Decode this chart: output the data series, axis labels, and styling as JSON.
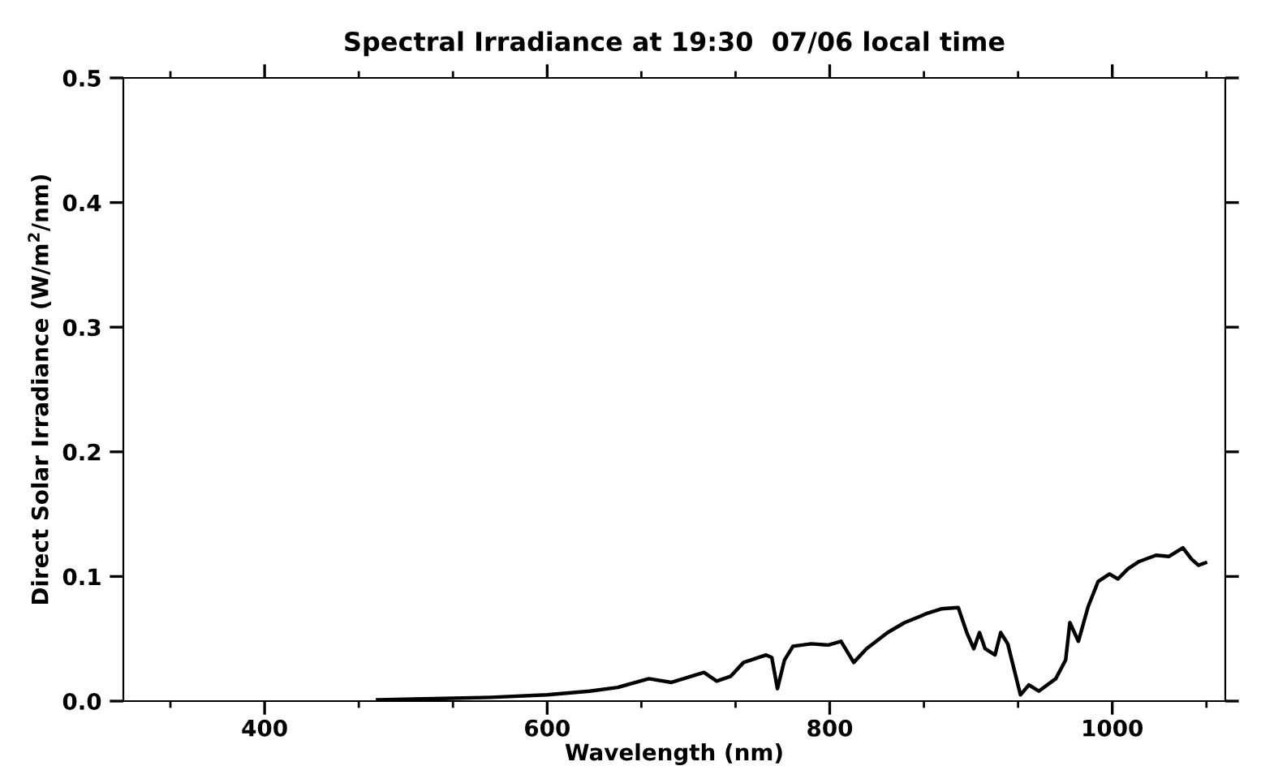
{
  "chart_data": {
    "type": "line",
    "title": "Spectral Irradiance at 19:30  07/06 local time",
    "xlabel": "Wavelength (nm)",
    "ylabel": "Direct Solar Irradiance (W/m$^{2}$/nm)",
    "xlim": [
      300,
      1080
    ],
    "xticks": [
      400,
      600,
      800,
      1000
    ],
    "ylim": [
      0,
      0.5
    ],
    "yticks": [
      {
        "value": 0,
        "label": "0.0"
      },
      0.1,
      0.2,
      0.3,
      0.4,
      0.5
    ],
    "grid": false,
    "legend": false,
    "series": [
      {
        "color": "#000000",
        "line_style": "solid",
        "x": [
          480,
          520,
          560,
          600,
          630,
          650,
          672,
          688,
          711,
          720,
          730,
          739,
          755,
          759,
          763,
          768,
          774,
          787,
          799,
          808,
          817,
          826,
          841,
          853,
          864,
          868,
          879,
          891,
          897,
          902,
          906,
          910,
          917,
          921,
          926,
          935,
          941,
          948,
          960,
          967,
          970,
          976,
          983,
          990,
          998,
          1004,
          1011,
          1019,
          1031,
          1040,
          1050,
          1056,
          1061,
          1066
        ],
        "values": [
          0.001,
          0.002,
          0.003,
          0.005,
          0.008,
          0.011,
          0.018,
          0.015,
          0.023,
          0.016,
          0.02,
          0.031,
          0.037,
          0.035,
          0.01,
          0.033,
          0.044,
          0.046,
          0.045,
          0.048,
          0.031,
          0.042,
          0.055,
          0.063,
          0.068,
          0.07,
          0.074,
          0.075,
          0.055,
          0.042,
          0.055,
          0.042,
          0.037,
          0.055,
          0.046,
          0.005,
          0.013,
          0.008,
          0.018,
          0.033,
          0.063,
          0.048,
          0.076,
          0.096,
          0.102,
          0.098,
          0.106,
          0.112,
          0.117,
          0.116,
          0.123,
          0.114,
          0.109,
          0.111
        ]
      }
    ]
  }
}
